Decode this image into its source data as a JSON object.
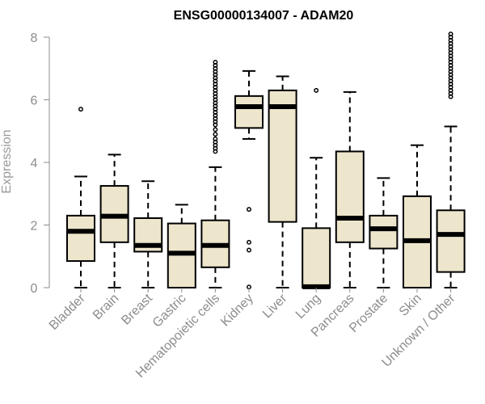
{
  "chart_data": {
    "type": "box",
    "title": "ENSG00000134007 - ADAM20",
    "xlabel": "",
    "ylabel": "Expression",
    "ylim": [
      0,
      8
    ],
    "yticks": [
      0,
      2,
      4,
      6,
      8
    ],
    "grid": false,
    "colors": {
      "box_fill": "#ede6cc",
      "stroke": "#000000",
      "axis": "#8c8c8c"
    },
    "categories": [
      "Bladder",
      "Brain",
      "Breast",
      "Gastric",
      "Hematopoietic cells",
      "Kidney",
      "Liver",
      "Lung",
      "Pancreas",
      "Prostate",
      "Skin",
      "Unknown / Other"
    ],
    "boxes": [
      {
        "name": "Bladder",
        "min": 0,
        "q1": 0.85,
        "median": 1.8,
        "q3": 2.3,
        "max": 3.55,
        "outliers": [
          5.7
        ]
      },
      {
        "name": "Brain",
        "min": 0,
        "q1": 1.45,
        "median": 2.28,
        "q3": 3.25,
        "max": 4.25,
        "outliers": []
      },
      {
        "name": "Breast",
        "min": 0,
        "q1": 1.15,
        "median": 1.35,
        "q3": 2.22,
        "max": 3.4,
        "outliers": []
      },
      {
        "name": "Gastric",
        "min": 0,
        "q1": 0,
        "median": 1.1,
        "q3": 2.05,
        "max": 2.65,
        "outliers": []
      },
      {
        "name": "Hematopoietic cells",
        "min": 0,
        "q1": 0.65,
        "median": 1.35,
        "q3": 2.15,
        "max": 3.85,
        "outliers": [
          4.35,
          4.45,
          4.55,
          4.65,
          4.75,
          4.9,
          5.05,
          5.2,
          5.3,
          5.4,
          5.5,
          5.6,
          5.7,
          5.8,
          5.9,
          6.0,
          6.1,
          6.2,
          6.3,
          6.4,
          6.5,
          6.6,
          6.7,
          6.8,
          6.9,
          7.0,
          7.1,
          7.2
        ]
      },
      {
        "name": "Kidney",
        "min": 4.75,
        "q1": 5.1,
        "median": 5.78,
        "q3": 6.12,
        "max": 6.92,
        "outliers": [
          2.5,
          1.45,
          1.2,
          0.02
        ]
      },
      {
        "name": "Liver",
        "min": 0,
        "q1": 2.1,
        "median": 5.78,
        "q3": 6.3,
        "max": 6.75,
        "outliers": []
      },
      {
        "name": "Lung",
        "min": 0,
        "q1": 0,
        "median": 0.03,
        "q3": 1.9,
        "max": 4.15,
        "outliers": [
          6.3
        ]
      },
      {
        "name": "Pancreas",
        "min": 0,
        "q1": 1.45,
        "median": 2.22,
        "q3": 4.35,
        "max": 6.25,
        "outliers": []
      },
      {
        "name": "Prostate",
        "min": 0,
        "q1": 1.25,
        "median": 1.88,
        "q3": 2.3,
        "max": 3.5,
        "outliers": []
      },
      {
        "name": "Skin",
        "min": 0,
        "q1": 0,
        "median": 1.5,
        "q3": 2.92,
        "max": 4.55,
        "outliers": []
      },
      {
        "name": "Unknown / Other",
        "min": 0,
        "q1": 0.5,
        "median": 1.7,
        "q3": 2.47,
        "max": 5.15,
        "outliers": [
          6.1,
          6.2,
          6.3,
          6.4,
          6.5,
          6.6,
          6.7,
          6.8,
          6.9,
          7.0,
          7.1,
          7.2,
          7.3,
          7.4,
          7.5,
          7.6,
          7.7,
          7.8,
          7.9,
          8.0,
          8.1
        ]
      }
    ]
  }
}
